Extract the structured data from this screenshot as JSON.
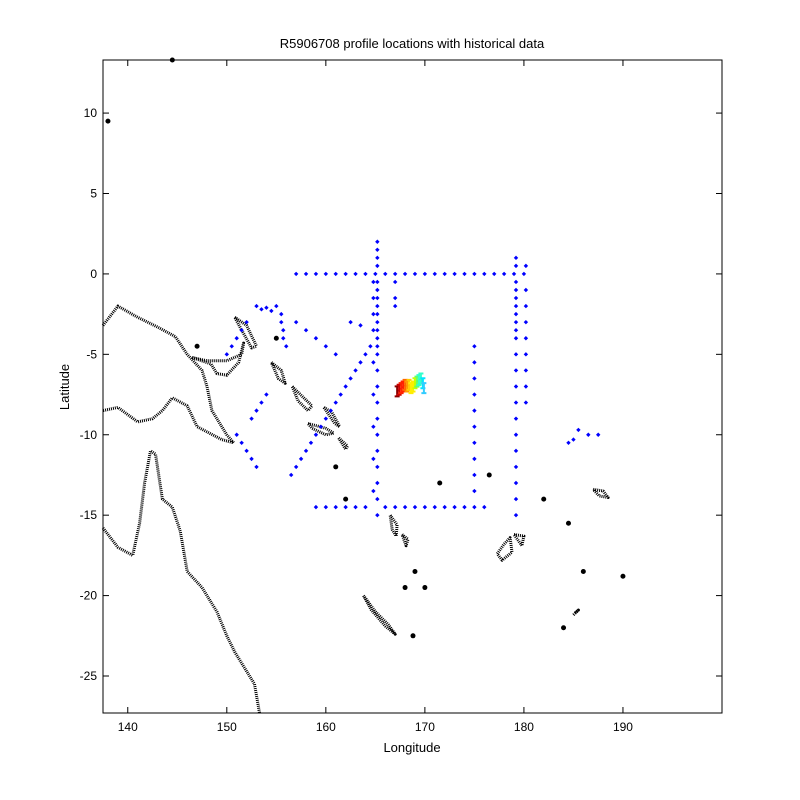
{
  "chart_data": {
    "type": "scatter",
    "title": "R5906708 profile locations with historical data",
    "xlabel": "Longitude",
    "ylabel": "Latitude",
    "xlim": [
      137.5,
      200
    ],
    "ylim": [
      -27.3,
      13.3
    ],
    "xticks": [
      140,
      150,
      160,
      170,
      180,
      190
    ],
    "yticks": [
      10,
      5,
      0,
      -5,
      -10,
      -15,
      -20,
      -25
    ],
    "grid": false,
    "series": [
      {
        "role": "historical",
        "color": "#0000ff",
        "points": [
          [
            157,
            0
          ],
          [
            158,
            0
          ],
          [
            159,
            0
          ],
          [
            160,
            0
          ],
          [
            161,
            0
          ],
          [
            162,
            0
          ],
          [
            163,
            0
          ],
          [
            164,
            0
          ],
          [
            165,
            0
          ],
          [
            166,
            0
          ],
          [
            167,
            0
          ],
          [
            168,
            0
          ],
          [
            169,
            0
          ],
          [
            170,
            0
          ],
          [
            171,
            0
          ],
          [
            172,
            0
          ],
          [
            173,
            0
          ],
          [
            174,
            0
          ],
          [
            175,
            0
          ],
          [
            176,
            0
          ],
          [
            177,
            0
          ],
          [
            178,
            0
          ],
          [
            179,
            0
          ],
          [
            180,
            0
          ],
          [
            165.2,
            2
          ],
          [
            165.2,
            1.5
          ],
          [
            165.2,
            1
          ],
          [
            165.2,
            0.5
          ],
          [
            165.2,
            -0.5
          ],
          [
            165.2,
            -1
          ],
          [
            165.2,
            -1.5
          ],
          [
            165.2,
            -2
          ],
          [
            165.2,
            -2.5
          ],
          [
            165.2,
            -3
          ],
          [
            165.2,
            -3.5
          ],
          [
            165.2,
            -4
          ],
          [
            165.2,
            -4.5
          ],
          [
            165.2,
            -5
          ],
          [
            165.2,
            -6
          ],
          [
            165.2,
            -7
          ],
          [
            165.2,
            -8
          ],
          [
            165.2,
            -9
          ],
          [
            165.2,
            -10
          ],
          [
            165.2,
            -11
          ],
          [
            165.2,
            -12
          ],
          [
            165.2,
            -13
          ],
          [
            165.2,
            -14
          ],
          [
            165.2,
            -15
          ],
          [
            164.8,
            -0.5
          ],
          [
            164.8,
            -1.5
          ],
          [
            164.8,
            -2.5
          ],
          [
            164.8,
            -3.5
          ],
          [
            164.8,
            -5.5
          ],
          [
            164.8,
            -7.5
          ],
          [
            164.8,
            -9.5
          ],
          [
            164.8,
            -11.5
          ],
          [
            164.8,
            -13.5
          ],
          [
            179.2,
            1
          ],
          [
            179.2,
            0.5
          ],
          [
            179.2,
            -0.5
          ],
          [
            179.2,
            -1
          ],
          [
            179.2,
            -1.5
          ],
          [
            179.2,
            -2
          ],
          [
            179.2,
            -2.5
          ],
          [
            179.2,
            -3
          ],
          [
            179.2,
            -3.5
          ],
          [
            179.2,
            -4
          ],
          [
            179.2,
            -5
          ],
          [
            179.2,
            -6
          ],
          [
            179.2,
            -7
          ],
          [
            179.2,
            -8
          ],
          [
            179.2,
            -9
          ],
          [
            179.2,
            -10
          ],
          [
            179.2,
            -11
          ],
          [
            179.2,
            -12
          ],
          [
            179.2,
            -13
          ],
          [
            179.2,
            -14
          ],
          [
            179.2,
            -15
          ],
          [
            180.2,
            0.5
          ],
          [
            180.2,
            -1
          ],
          [
            180.2,
            -2
          ],
          [
            180.2,
            -3
          ],
          [
            180.2,
            -4
          ],
          [
            180.2,
            -5
          ],
          [
            180.2,
            -6
          ],
          [
            180.2,
            -7
          ],
          [
            180.2,
            -8
          ],
          [
            175,
            -4.5
          ],
          [
            175,
            -5.5
          ],
          [
            175,
            -6.5
          ],
          [
            175,
            -7.5
          ],
          [
            175,
            -8.5
          ],
          [
            175,
            -9.5
          ],
          [
            175,
            -10.5
          ],
          [
            175,
            -11.5
          ],
          [
            175,
            -12.5
          ],
          [
            175,
            -13.5
          ],
          [
            175,
            -14.5
          ],
          [
            167,
            -0.5
          ],
          [
            167,
            -1.5
          ],
          [
            167,
            -2
          ],
          [
            159,
            -14.5
          ],
          [
            160,
            -14.5
          ],
          [
            161,
            -14.5
          ],
          [
            162,
            -14.5
          ],
          [
            163,
            -14.5
          ],
          [
            164,
            -14.5
          ],
          [
            166,
            -14.5
          ],
          [
            167,
            -14.5
          ],
          [
            168,
            -14.5
          ],
          [
            169,
            -14.5
          ],
          [
            170,
            -14.5
          ],
          [
            171,
            -14.5
          ],
          [
            172,
            -14.5
          ],
          [
            173,
            -14.5
          ],
          [
            174,
            -14.5
          ],
          [
            176,
            -14.5
          ],
          [
            153,
            -2
          ],
          [
            153.5,
            -2.2
          ],
          [
            154,
            -2.1
          ],
          [
            154.5,
            -2.3
          ],
          [
            155,
            -2
          ],
          [
            155.5,
            -2.5
          ],
          [
            155.5,
            -3
          ],
          [
            155.7,
            -3.5
          ],
          [
            155.7,
            -4
          ],
          [
            156,
            -4.5
          ],
          [
            152,
            -3
          ],
          [
            151.5,
            -3.5
          ],
          [
            151,
            -4
          ],
          [
            150.5,
            -4.5
          ],
          [
            150,
            -5
          ],
          [
            163,
            -6
          ],
          [
            162.5,
            -6.5
          ],
          [
            162,
            -7
          ],
          [
            161.5,
            -7.5
          ],
          [
            161,
            -8
          ],
          [
            160.5,
            -8.5
          ],
          [
            160,
            -9
          ],
          [
            159.5,
            -9.5
          ],
          [
            159,
            -10
          ],
          [
            158.5,
            -10.5
          ],
          [
            158,
            -11
          ],
          [
            157.5,
            -11.5
          ],
          [
            157,
            -12
          ],
          [
            156.5,
            -12.5
          ],
          [
            163.5,
            -5.5
          ],
          [
            164,
            -5
          ],
          [
            164.5,
            -4.5
          ],
          [
            153,
            -12
          ],
          [
            152.5,
            -11.5
          ],
          [
            152,
            -11
          ],
          [
            151.5,
            -10.5
          ],
          [
            151,
            -10
          ],
          [
            152.5,
            -9
          ],
          [
            153,
            -8.5
          ],
          [
            153.5,
            -8
          ],
          [
            154,
            -7.5
          ],
          [
            157,
            -3
          ],
          [
            158,
            -3.5
          ],
          [
            159,
            -4
          ],
          [
            160,
            -4.5
          ],
          [
            161,
            -5
          ],
          [
            162.5,
            -3
          ],
          [
            163.5,
            -3.2
          ],
          [
            184.5,
            -10.5
          ],
          [
            185,
            -10.3
          ],
          [
            185.5,
            -9.7
          ],
          [
            186.5,
            -10
          ],
          [
            187.5,
            -10
          ]
        ]
      },
      {
        "role": "float",
        "color": "#ff0000",
        "points": [
          [
            167.2,
            -7.3
          ],
          [
            167.4,
            -7.2
          ],
          [
            167.6,
            -7.1
          ],
          [
            167.8,
            -7.0
          ],
          [
            168.0,
            -6.9
          ],
          [
            168.2,
            -7.0
          ],
          [
            168.4,
            -6.9
          ],
          [
            168.6,
            -7.1
          ],
          [
            168.8,
            -7.0
          ],
          [
            169.0,
            -6.8
          ],
          [
            169.2,
            -6.7
          ],
          [
            169.4,
            -6.6
          ],
          [
            169.6,
            -6.5
          ],
          [
            169.8,
            -6.8
          ],
          [
            169.9,
            -7.1
          ]
        ]
      }
    ],
    "coastline_color": "#000000"
  }
}
